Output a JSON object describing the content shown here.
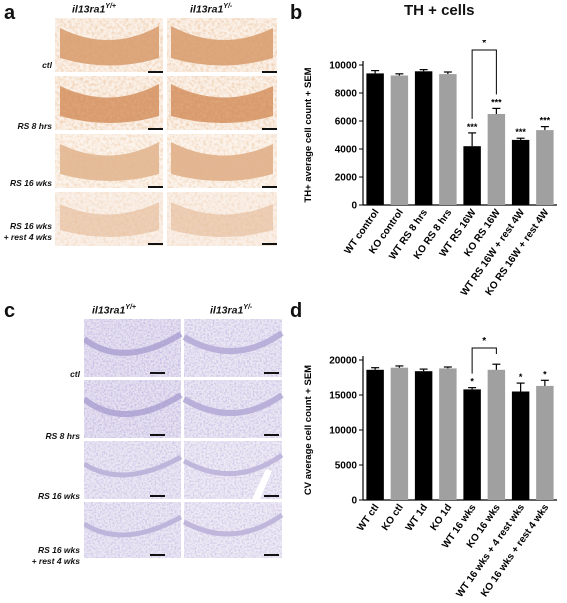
{
  "panels": {
    "a": {
      "letter": "a",
      "genotype_left": "il13ra1",
      "genotype_left_sup": "Y/+",
      "genotype_right": "il13ra1",
      "genotype_right_sup": "Y/-",
      "rows": [
        "ctl",
        "RS 8 hrs",
        "RS 16 wks",
        "RS 16 wks",
        "+ rest 4 wks"
      ],
      "stain_color": "#c9773a"
    },
    "b": {
      "letter": "b"
    },
    "c": {
      "letter": "c",
      "genotype_left": "il13ra1",
      "genotype_left_sup": "Y/+",
      "genotype_right": "il13ra1",
      "genotype_right_sup": "Y/-",
      "rows": [
        "ctl",
        "RS 8 hrs",
        "RS 16 wks",
        "RS 16 wks",
        "+ rest 4 wks"
      ],
      "stain_color": "#8a7cc0"
    },
    "d": {
      "letter": "d"
    }
  },
  "chart_data": [
    {
      "type": "bar",
      "title": "TH + cells",
      "ylabel": "TH+ average cell count + SEM",
      "xlabel": "",
      "ylim": [
        0,
        10000
      ],
      "yticks": [
        "0",
        "2000",
        "4000",
        "6000",
        "8000",
        "10000"
      ],
      "categories": [
        "WT control",
        "KO control",
        "WT RS 8 hrs",
        "KO RS 8 hrs",
        "WT RS 16W",
        "KO RS 16W",
        "WT RS 16W + rest 4W",
        "KO RS 16W + rest 4W"
      ],
      "values": [
        9400,
        9250,
        9550,
        9350,
        4200,
        6500,
        4650,
        5350
      ],
      "errors": [
        200,
        120,
        120,
        150,
        950,
        400,
        120,
        250
      ],
      "bar_colors": [
        "#000000",
        "#a0a0a0",
        "#000000",
        "#a0a0a0",
        "#000000",
        "#a0a0a0",
        "#000000",
        "#a0a0a0"
      ],
      "significance": [
        "",
        "",
        "",
        "",
        "***",
        "***",
        "***",
        "***"
      ],
      "bracket": {
        "from": 4,
        "to": 5,
        "label": "*"
      },
      "grid": false
    },
    {
      "type": "bar",
      "title": "",
      "ylabel": "CV average cell count + SEM",
      "xlabel": "",
      "ylim": [
        0,
        20000
      ],
      "yticks": [
        "0",
        "5000",
        "10000",
        "15000",
        "20000"
      ],
      "categories": [
        "WT ctl",
        "KO ctl",
        "WT 1d",
        "KO 1d",
        "WT 16 wks",
        "KO 16 wks",
        "WT 16 wks + 4 rest wks",
        "KO 16 wks + rest 4 wks"
      ],
      "values": [
        18600,
        18900,
        18400,
        18800,
        15800,
        18600,
        15500,
        16300
      ],
      "errors": [
        300,
        250,
        300,
        200,
        250,
        800,
        1200,
        800
      ],
      "bar_colors": [
        "#000000",
        "#a0a0a0",
        "#000000",
        "#a0a0a0",
        "#000000",
        "#a0a0a0",
        "#000000",
        "#a0a0a0"
      ],
      "significance": [
        "",
        "",
        "",
        "",
        "*",
        "",
        "*",
        "*"
      ],
      "bracket": {
        "from": 4,
        "to": 5,
        "label": "*"
      },
      "grid": false
    }
  ]
}
